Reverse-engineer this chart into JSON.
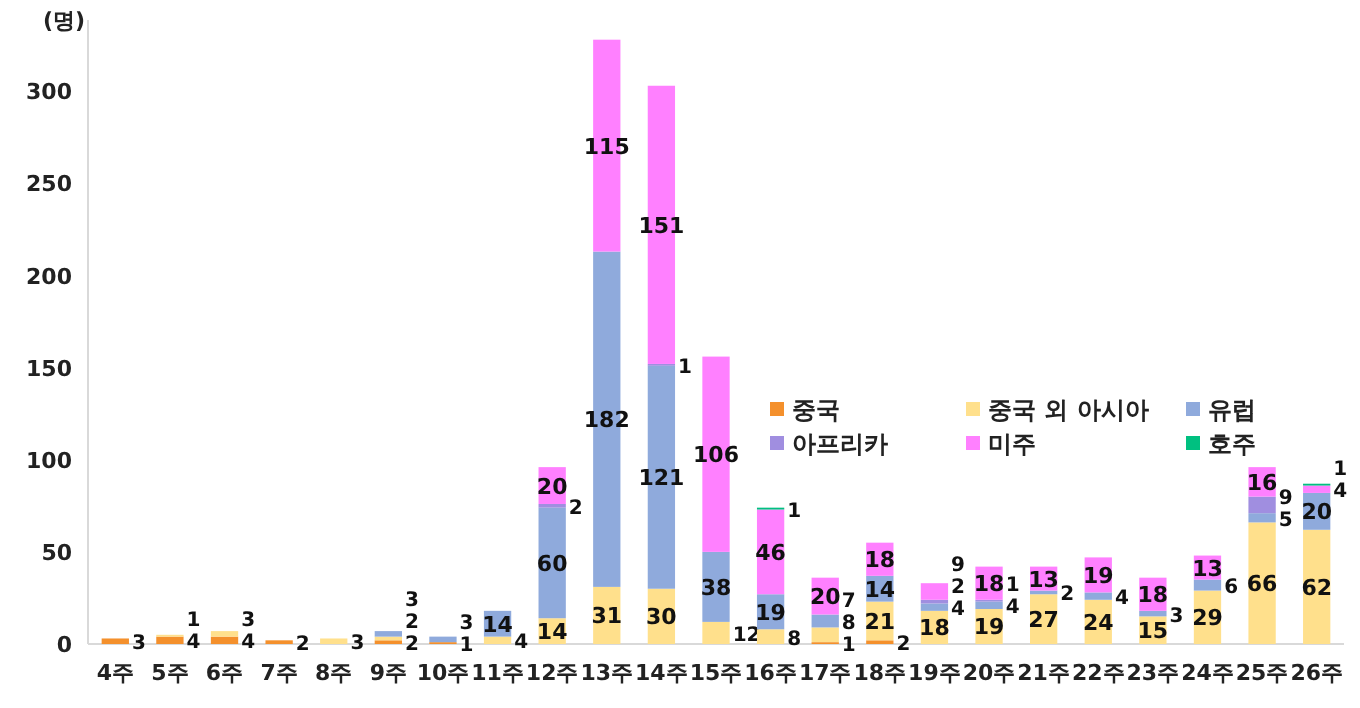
{
  "chart_data": {
    "type": "bar",
    "stacked": true,
    "ylabel": "(명)",
    "categories": [
      "4주",
      "5주",
      "6주",
      "7주",
      "8주",
      "9주",
      "10주",
      "11주",
      "12주",
      "13주",
      "14주",
      "15주",
      "16주",
      "17주",
      "18주",
      "19주",
      "20주",
      "21주",
      "22주",
      "23주",
      "24주",
      "25주",
      "26주"
    ],
    "series": [
      {
        "name": "중국",
        "color": "#f4902c",
        "values": [
          3,
          4,
          4,
          2,
          null,
          2,
          1,
          null,
          null,
          null,
          null,
          null,
          null,
          1,
          2,
          null,
          null,
          null,
          null,
          null,
          null,
          null,
          null
        ]
      },
      {
        "name": "중국 외 아시아",
        "color": "#ffe08c",
        "values": [
          null,
          1,
          3,
          null,
          3,
          2,
          null,
          4,
          14,
          31,
          30,
          12,
          8,
          8,
          21,
          18,
          19,
          27,
          24,
          15,
          29,
          66,
          62
        ]
      },
      {
        "name": "유럽",
        "color": "#8faadc",
        "values": [
          null,
          null,
          null,
          null,
          null,
          3,
          3,
          14,
          60,
          182,
          121,
          38,
          19,
          7,
          14,
          4,
          4,
          2,
          4,
          3,
          6,
          5,
          20
        ]
      },
      {
        "name": "아프리카",
        "color": "#a08ee0",
        "values": [
          null,
          null,
          null,
          null,
          null,
          null,
          null,
          null,
          2,
          null,
          1,
          null,
          null,
          null,
          null,
          2,
          1,
          null,
          null,
          null,
          null,
          9,
          null
        ]
      },
      {
        "name": "미주",
        "color": "#ff80ff",
        "values": [
          null,
          null,
          null,
          null,
          null,
          null,
          null,
          null,
          20,
          115,
          151,
          106,
          46,
          20,
          18,
          9,
          18,
          13,
          19,
          18,
          13,
          16,
          4
        ]
      },
      {
        "name": "호주",
        "color": "#00c080",
        "values": [
          null,
          null,
          null,
          null,
          null,
          null,
          null,
          null,
          null,
          null,
          null,
          null,
          1,
          null,
          null,
          null,
          null,
          null,
          null,
          null,
          null,
          null,
          1
        ]
      }
    ],
    "ylim": [
      0,
      330
    ],
    "yticks": [
      0,
      50,
      100,
      150,
      200,
      250,
      300
    ],
    "data_labels": true,
    "legend": "right",
    "grid": false
  }
}
